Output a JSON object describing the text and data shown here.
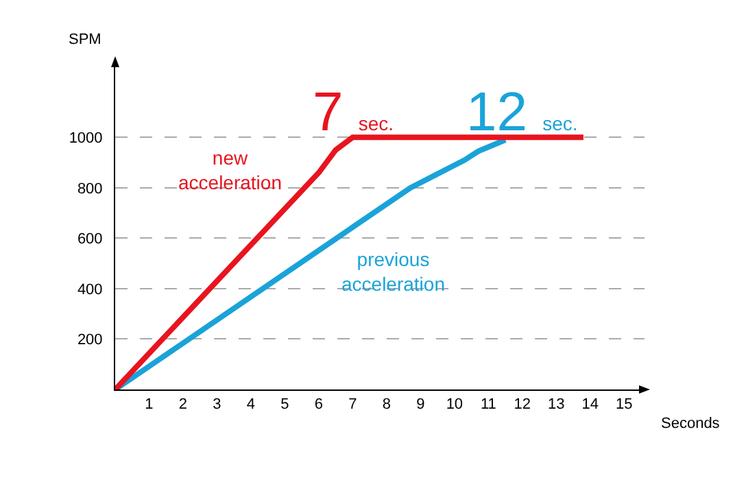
{
  "chart_data": {
    "type": "line",
    "xlabel": "Seconds",
    "ylabel": "SPM",
    "xlim": [
      0,
      15.6
    ],
    "xticks": [
      1,
      2,
      3,
      4,
      5,
      6,
      7,
      8,
      9,
      10,
      11,
      12,
      13,
      14,
      15
    ],
    "ylim": [
      0,
      1300
    ],
    "yticks": [
      200,
      400,
      600,
      800,
      1000
    ],
    "grid": "y",
    "line_style": "solid",
    "marker": "none",
    "series": [
      {
        "name": "new acceleration",
        "color": "#e8141e",
        "x": [
          0,
          6,
          6.5,
          7,
          13.8
        ],
        "values": [
          0,
          860,
          950,
          1000,
          1000
        ]
      },
      {
        "name": "previous acceleration",
        "color": "#1aa3d9",
        "x": [
          0,
          8.7,
          10.3,
          10.7,
          11.5
        ],
        "values": [
          0,
          800,
          910,
          945,
          990
        ]
      }
    ],
    "annotations": [
      {
        "text": "7 sec.",
        "x": 7,
        "y": 1000
      },
      {
        "text": "12 sec.",
        "x": 12,
        "y": 1000
      }
    ]
  }
}
